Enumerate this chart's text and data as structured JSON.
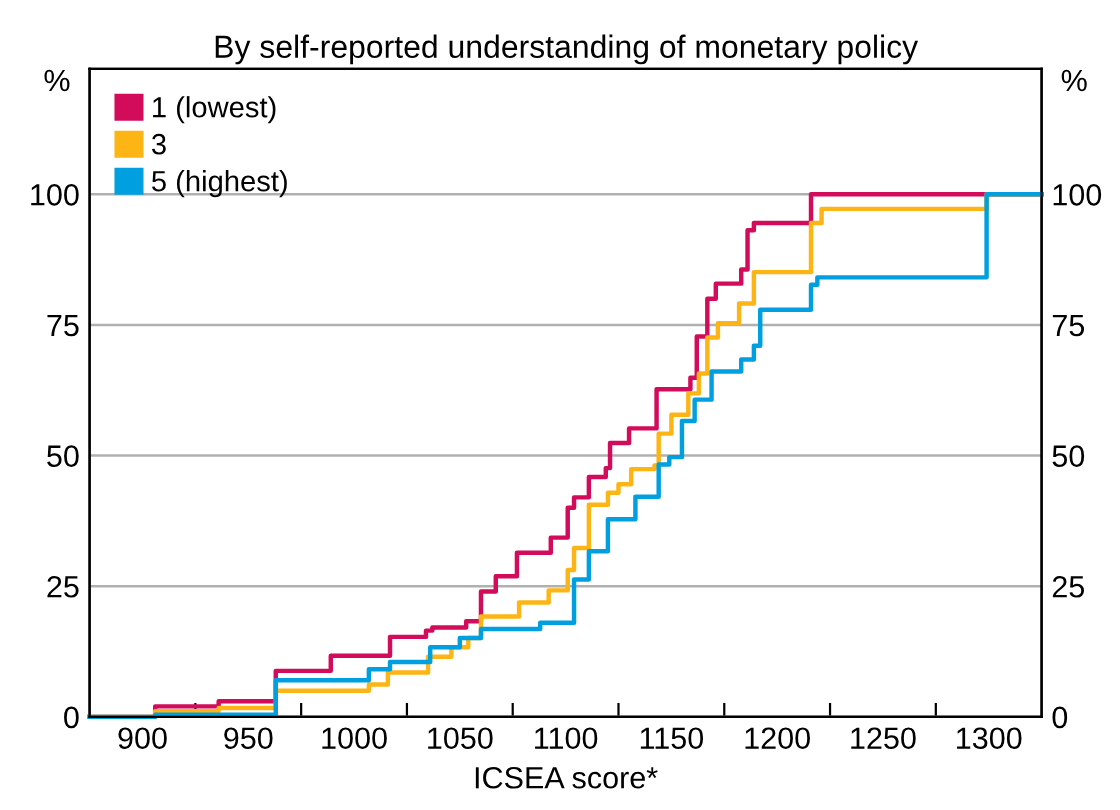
{
  "chart_data": {
    "type": "step",
    "title": "By self-reported understanding of monetary policy",
    "xlabel": "ICSEA score*",
    "ylabel": "%",
    "y2label": "%",
    "xlim": [
      875,
      1325
    ],
    "ylim": [
      0,
      124
    ],
    "y2lim": [
      0,
      124
    ],
    "xticks": [
      900,
      {
        "value": 925,
        "label": null
      },
      950,
      {
        "value": 975,
        "label": null
      },
      1000,
      {
        "value": 1025,
        "label": null
      },
      1050,
      {
        "value": 1075,
        "label": null
      },
      1100,
      {
        "value": 1125,
        "label": null
      },
      1150,
      {
        "value": 1175,
        "label": null
      },
      1200,
      {
        "value": 1225,
        "label": null
      },
      1250,
      {
        "value": 1275,
        "label": null
      },
      1300
    ],
    "yticks": [
      0,
      25,
      50,
      75,
      100
    ],
    "y2ticks": [
      0,
      25,
      50,
      75,
      100
    ],
    "grid": "y",
    "legend": "top left",
    "series": [
      {
        "name": "1 (lowest)",
        "color": "#d20b5a",
        "x": [
          875,
          906,
          936,
          963,
          989,
          1017,
          1034,
          1037,
          1053,
          1060,
          1067,
          1077,
          1093,
          1101,
          1104,
          1111,
          1119,
          1121,
          1130,
          1143,
          1159,
          1162,
          1167,
          1171,
          1183,
          1186,
          1189,
          1216,
          1325
        ],
        "values": [
          0,
          2.0,
          3.0,
          8.8,
          11.7,
          15.3,
          16.5,
          17.1,
          18.3,
          24.0,
          26.9,
          31.4,
          34.3,
          40.0,
          42.0,
          45.9,
          47.6,
          52.4,
          55.2,
          62.7,
          64.9,
          72.8,
          80.0,
          82.9,
          85.6,
          93.1,
          94.5,
          100,
          100
        ]
      },
      {
        "name": "3",
        "color": "#fdb515",
        "x": [
          875,
          906,
          936,
          963,
          1007,
          1016,
          1035,
          1046,
          1054,
          1060,
          1078,
          1092,
          1101,
          1104,
          1111,
          1120,
          1125,
          1131,
          1142,
          1144,
          1150,
          1158,
          1163,
          1167,
          1172,
          1182,
          1189,
          1216,
          1221,
          1299,
          1325
        ],
        "values": [
          0,
          1.1,
          1.7,
          5.0,
          6.2,
          8.5,
          11.5,
          13.3,
          15.1,
          19.2,
          21.9,
          24.2,
          28.1,
          32.3,
          40.6,
          42.9,
          44.5,
          47.4,
          48.1,
          54.2,
          57.8,
          61.9,
          65.7,
          72.6,
          75.3,
          79.1,
          85.1,
          94.5,
          97.2,
          100,
          100
        ]
      },
      {
        "name": "5 (highest)",
        "color": "#00a0e0",
        "x": [
          875,
          906,
          963,
          1007,
          1017,
          1036,
          1050,
          1060,
          1088,
          1104,
          1111,
          1120,
          1133,
          1144,
          1149,
          1155,
          1161,
          1169,
          1183,
          1189,
          1192,
          1216,
          1219,
          1299,
          1325
        ],
        "values": [
          0,
          0.4,
          7.0,
          9.1,
          10.5,
          13.3,
          15.1,
          16.8,
          18.0,
          26.3,
          31.7,
          37.8,
          42.1,
          48.3,
          49.7,
          56.6,
          60.7,
          66.1,
          68.4,
          71.0,
          77.9,
          82.7,
          84.1,
          100,
          100
        ]
      }
    ]
  }
}
